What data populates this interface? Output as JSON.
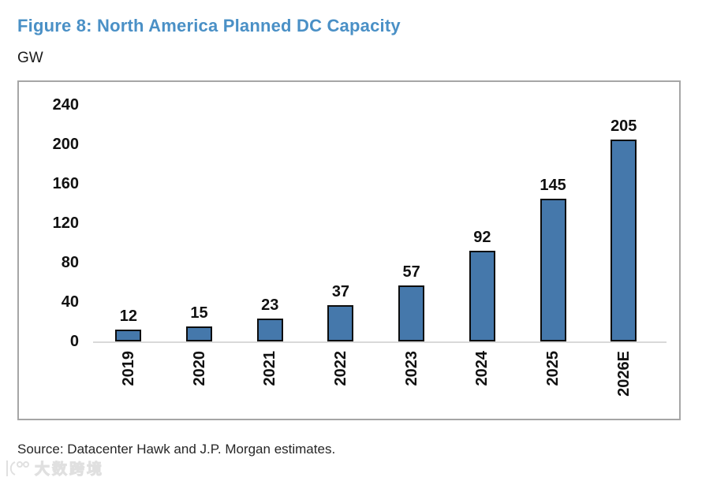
{
  "figure": {
    "title": "Figure 8: North America Planned DC Capacity",
    "unit_label": "GW",
    "source": "Source: Datacenter Hawk and J.P. Morgan estimates."
  },
  "watermark": {
    "text": "大数跨境"
  },
  "colors": {
    "title_color": "#4a90c6",
    "bar_fill": "#4578ab",
    "bar_border": "#0d0d0d",
    "chart_border": "#a6a6a6",
    "baseline_color": "#d9d9d9",
    "axis_text": "#111111"
  },
  "chart_data": {
    "type": "bar",
    "title": "Figure 8: North America Planned DC Capacity",
    "categories": [
      "2019",
      "2020",
      "2021",
      "2022",
      "2023",
      "2024",
      "2025",
      "2026E"
    ],
    "values": [
      12,
      15,
      23,
      37,
      57,
      92,
      145,
      205
    ],
    "xlabel": "",
    "ylabel": "GW",
    "ylim": [
      0,
      240
    ],
    "yticks": [
      0,
      40,
      80,
      120,
      160,
      200,
      240
    ],
    "grid": false,
    "legend_position": "none",
    "data_labels": true,
    "x_tick_rotation": -90
  }
}
